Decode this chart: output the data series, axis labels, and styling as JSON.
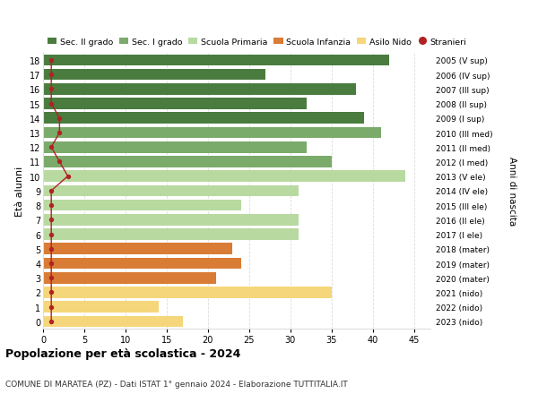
{
  "ages": [
    18,
    17,
    16,
    15,
    14,
    13,
    12,
    11,
    10,
    9,
    8,
    7,
    6,
    5,
    4,
    3,
    2,
    1,
    0
  ],
  "values": [
    42,
    27,
    38,
    32,
    39,
    41,
    32,
    35,
    44,
    31,
    24,
    31,
    31,
    23,
    24,
    21,
    35,
    14,
    17
  ],
  "stranieri": [
    1,
    1,
    1,
    1,
    2,
    2,
    1,
    2,
    3,
    1,
    1,
    1,
    1,
    1,
    1,
    1,
    1,
    1,
    1
  ],
  "right_labels": [
    "2005 (V sup)",
    "2006 (IV sup)",
    "2007 (III sup)",
    "2008 (II sup)",
    "2009 (I sup)",
    "2010 (III med)",
    "2011 (II med)",
    "2012 (I med)",
    "2013 (V ele)",
    "2014 (IV ele)",
    "2015 (III ele)",
    "2016 (II ele)",
    "2017 (I ele)",
    "2018 (mater)",
    "2019 (mater)",
    "2020 (mater)",
    "2021 (nido)",
    "2022 (nido)",
    "2023 (nido)"
  ],
  "bar_colors": [
    "#4a7c3f",
    "#4a7c3f",
    "#4a7c3f",
    "#4a7c3f",
    "#4a7c3f",
    "#7aab6a",
    "#7aab6a",
    "#7aab6a",
    "#b8d9a0",
    "#b8d9a0",
    "#b8d9a0",
    "#b8d9a0",
    "#b8d9a0",
    "#d97c35",
    "#d97c35",
    "#d97c35",
    "#f5d67a",
    "#f5d67a",
    "#f5d67a"
  ],
  "stranieri_color": "#b22222",
  "legend_labels": [
    "Sec. II grado",
    "Sec. I grado",
    "Scuola Primaria",
    "Scuola Infanzia",
    "Asilo Nido",
    "Stranieri"
  ],
  "legend_colors": [
    "#4a7c3f",
    "#7aab6a",
    "#b8d9a0",
    "#d97c35",
    "#f5d67a",
    "#b22222"
  ],
  "ylabel_left": "Età alunni",
  "ylabel_right": "Anni di nascita",
  "title": "Popolazione per età scolastica - 2024",
  "subtitle": "COMUNE DI MARATEA (PZ) - Dati ISTAT 1° gennaio 2024 - Elaborazione TUTTITALIA.IT",
  "xlim": [
    0,
    47
  ],
  "xticks": [
    0,
    5,
    10,
    15,
    20,
    25,
    30,
    35,
    40,
    45
  ],
  "bg_color": "#ffffff",
  "grid_color": "#dddddd",
  "bar_height": 0.78
}
